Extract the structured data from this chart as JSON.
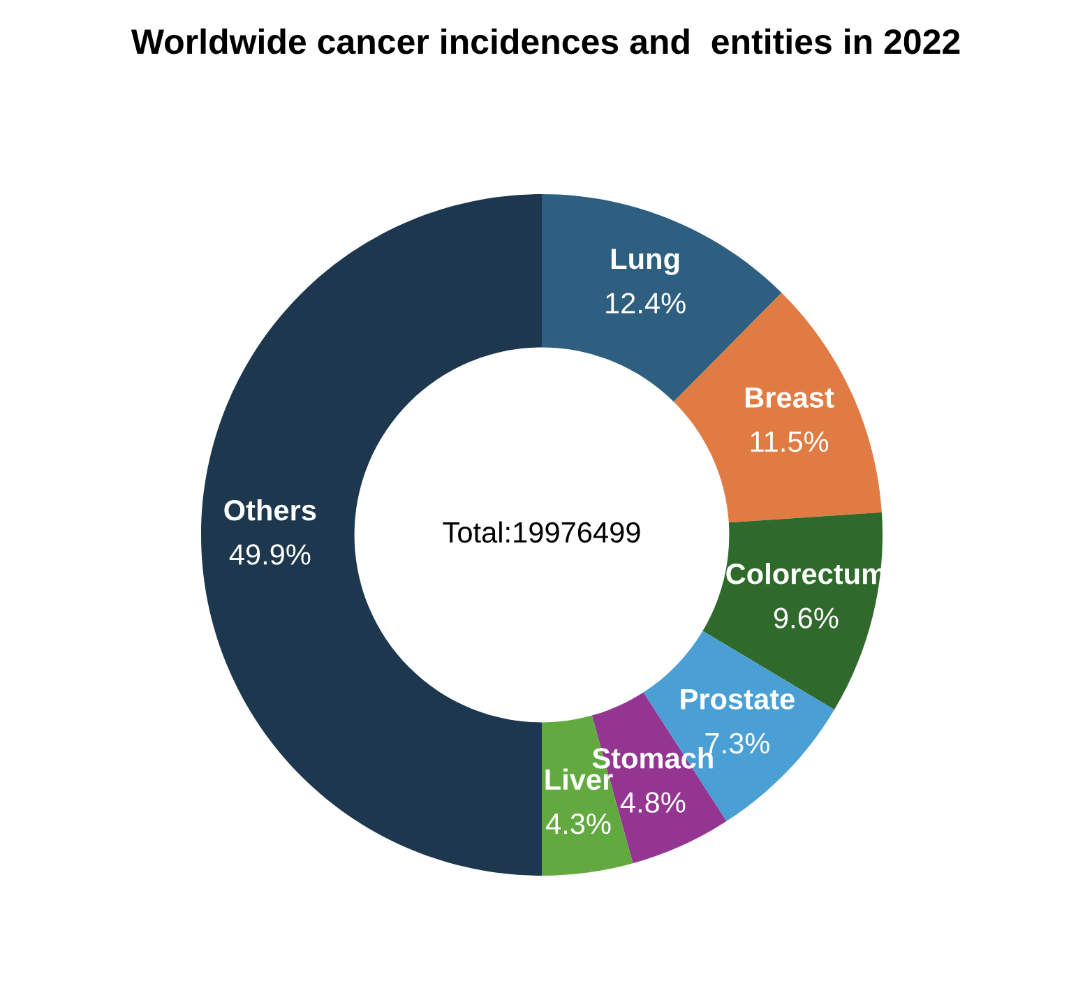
{
  "chart_data": {
    "type": "donut",
    "title": "Worldwide cancer incidences and  entities in 2022",
    "categories": [
      "Lung",
      "Breast",
      "Colorectum",
      "Prostate",
      "Stomach",
      "Liver",
      "Others"
    ],
    "values": [
      12.4,
      11.5,
      9.6,
      7.3,
      4.8,
      4.3,
      49.9
    ],
    "colors": [
      "#2e5f80",
      "#e07b43",
      "#2f6a2c",
      "#4a9fd5",
      "#953592",
      "#62aa3f",
      "#1d374e"
    ],
    "value_labels": [
      "12.4%",
      "11.5%",
      "9.6%",
      "7.3%",
      "4.8%",
      "4.3%",
      "49.9%"
    ],
    "annotations": [
      "Total:19976499"
    ]
  }
}
